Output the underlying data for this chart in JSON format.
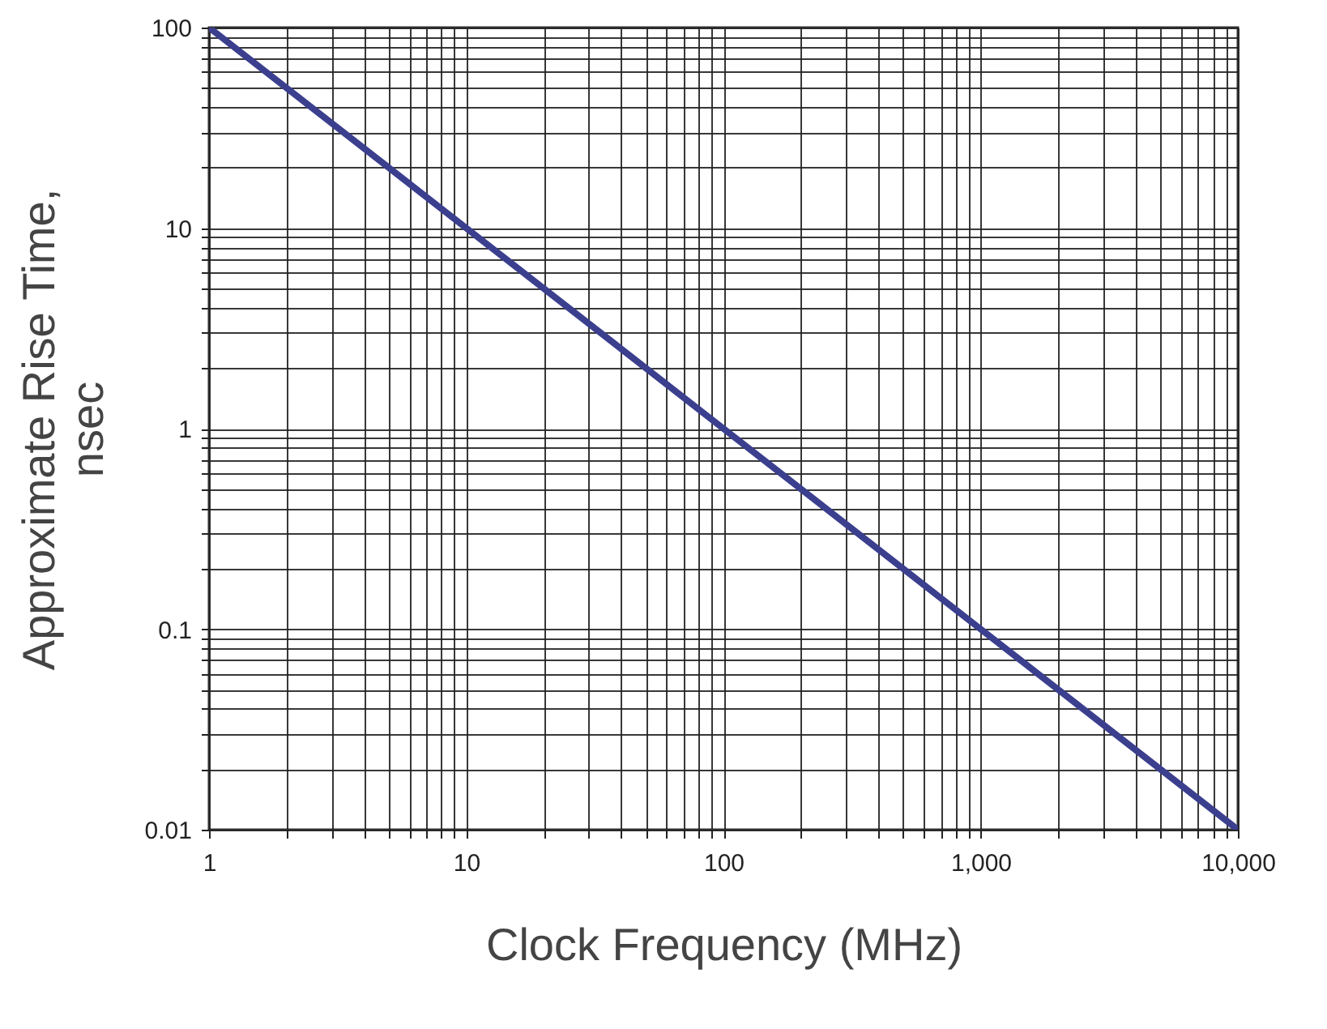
{
  "chart_data": {
    "type": "line",
    "xlabel": "Clock Frequency (MHz)",
    "ylabel": "Approximate Rise Time, nsec",
    "log": "xy",
    "grid": true,
    "x": [
      1,
      10000
    ],
    "series": [
      {
        "color": "#3b3f8e",
        "values": [
          100,
          0.01
        ]
      }
    ],
    "xlim": [
      1,
      10000
    ],
    "ylim": [
      0.01,
      100
    ],
    "xticks": [
      1,
      {
        "value": 2,
        "label": null
      },
      {
        "value": 3,
        "label": null
      },
      {
        "value": 4,
        "label": null
      },
      {
        "value": 5,
        "label": null
      },
      {
        "value": 6,
        "label": null
      },
      {
        "value": 7,
        "label": null
      },
      {
        "value": 8,
        "label": null
      },
      {
        "value": 9,
        "label": null
      },
      10,
      {
        "value": 20,
        "label": null
      },
      {
        "value": 30,
        "label": null
      },
      {
        "value": 40,
        "label": null
      },
      {
        "value": 50,
        "label": null
      },
      {
        "value": 60,
        "label": null
      },
      {
        "value": 70,
        "label": null
      },
      {
        "value": 80,
        "label": null
      },
      {
        "value": 90,
        "label": null
      },
      100,
      {
        "value": 200,
        "label": null
      },
      {
        "value": 300,
        "label": null
      },
      {
        "value": 400,
        "label": null
      },
      {
        "value": 500,
        "label": null
      },
      {
        "value": 600,
        "label": null
      },
      {
        "value": 700,
        "label": null
      },
      {
        "value": 800,
        "label": null
      },
      {
        "value": 900,
        "label": null
      },
      {
        "value": 1000,
        "label": "1,000"
      },
      {
        "value": 2000,
        "label": null
      },
      {
        "value": 3000,
        "label": null
      },
      {
        "value": 4000,
        "label": null
      },
      {
        "value": 5000,
        "label": null
      },
      {
        "value": 6000,
        "label": null
      },
      {
        "value": 7000,
        "label": null
      },
      {
        "value": 8000,
        "label": null
      },
      {
        "value": 9000,
        "label": null
      },
      {
        "value": 10000,
        "label": "10,000"
      }
    ],
    "yticks": [
      0.01,
      {
        "value": 0.02,
        "label": null
      },
      {
        "value": 0.03,
        "label": null
      },
      {
        "value": 0.04,
        "label": null
      },
      {
        "value": 0.05,
        "label": null
      },
      {
        "value": 0.06,
        "label": null
      },
      {
        "value": 0.07,
        "label": null
      },
      {
        "value": 0.08,
        "label": null
      },
      {
        "value": 0.09,
        "label": null
      },
      0.1,
      {
        "value": 0.2,
        "label": null
      },
      {
        "value": 0.3,
        "label": null
      },
      {
        "value": 0.4,
        "label": null
      },
      {
        "value": 0.5,
        "label": null
      },
      {
        "value": 0.6,
        "label": null
      },
      {
        "value": 0.7,
        "label": null
      },
      {
        "value": 0.8,
        "label": null
      },
      {
        "value": 0.9,
        "label": null
      },
      1,
      {
        "value": 2,
        "label": null
      },
      {
        "value": 3,
        "label": null
      },
      {
        "value": 4,
        "label": null
      },
      {
        "value": 5,
        "label": null
      },
      {
        "value": 6,
        "label": null
      },
      {
        "value": 7,
        "label": null
      },
      {
        "value": 8,
        "label": null
      },
      {
        "value": 9,
        "label": null
      },
      10,
      {
        "value": 20,
        "label": null
      },
      {
        "value": 30,
        "label": null
      },
      {
        "value": 40,
        "label": null
      },
      {
        "value": 50,
        "label": null
      },
      {
        "value": 60,
        "label": null
      },
      {
        "value": 70,
        "label": null
      },
      {
        "value": 80,
        "label": null
      },
      {
        "value": 90,
        "label": null
      },
      100
    ]
  }
}
